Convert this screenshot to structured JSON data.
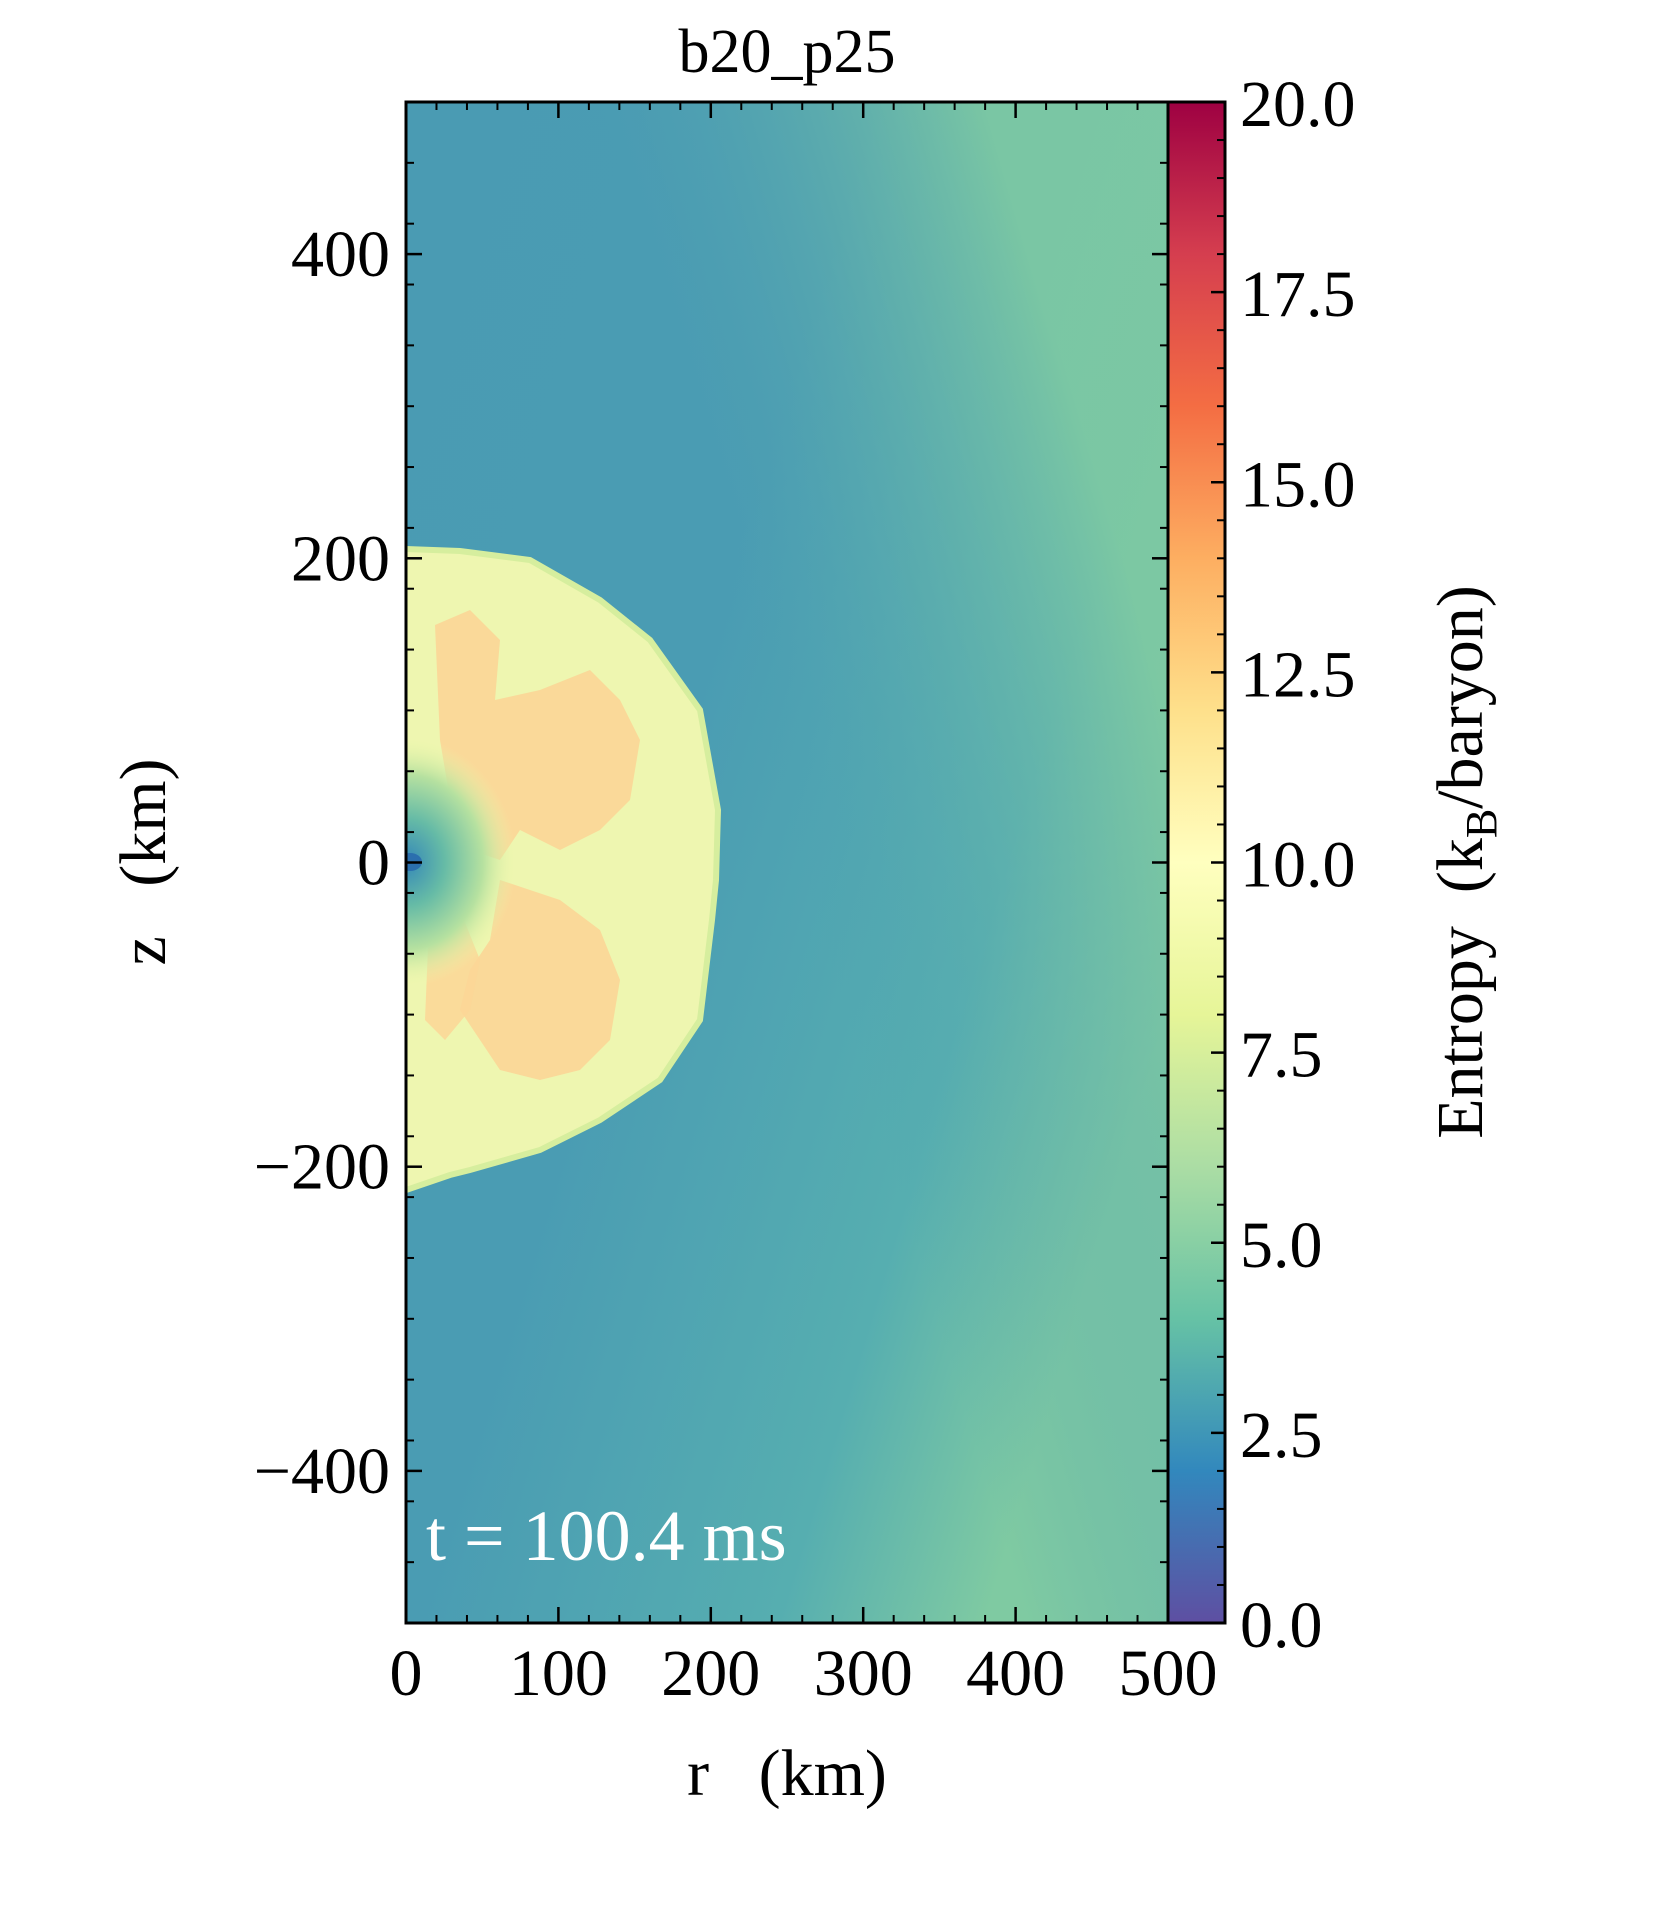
{
  "chart_data": {
    "type": "heatmap",
    "title": "b20_p25",
    "xlabel": "r   (km)",
    "ylabel": "z   (km)",
    "xlim": [
      0,
      500
    ],
    "ylim": [
      -500,
      500
    ],
    "x_ticks": [
      "0",
      "100",
      "200",
      "300",
      "400",
      "500"
    ],
    "y_ticks": [
      "−400",
      "−200",
      "0",
      "200",
      "400"
    ],
    "x_tick_values": [
      0,
      100,
      200,
      300,
      400,
      500
    ],
    "y_tick_values": [
      -400,
      -200,
      0,
      200,
      400
    ],
    "annotation": "t = 100.4 ms",
    "colorbar": {
      "label_main": "Entropy  (k",
      "label_sub": "B",
      "label_tail": "/baryon)",
      "range": [
        0.0,
        20.0
      ],
      "colormap": "Spectral_r",
      "ticks": [
        "0.0",
        "2.5",
        "5.0",
        "7.5",
        "10.0",
        "12.5",
        "15.0",
        "17.5",
        "20.0"
      ],
      "tick_values": [
        0,
        2.5,
        5,
        7.5,
        10,
        12.5,
        15,
        17.5,
        20
      ]
    },
    "field": {
      "background_entropy": 3.5,
      "outer_corner_entropy": 5.3,
      "shock_radius_km": 205,
      "shocked_region_entropy": 9.5,
      "hot_plume_entropy": 11.5,
      "inner_core_entropy": 4.5,
      "center_entropy": 2.0
    }
  }
}
